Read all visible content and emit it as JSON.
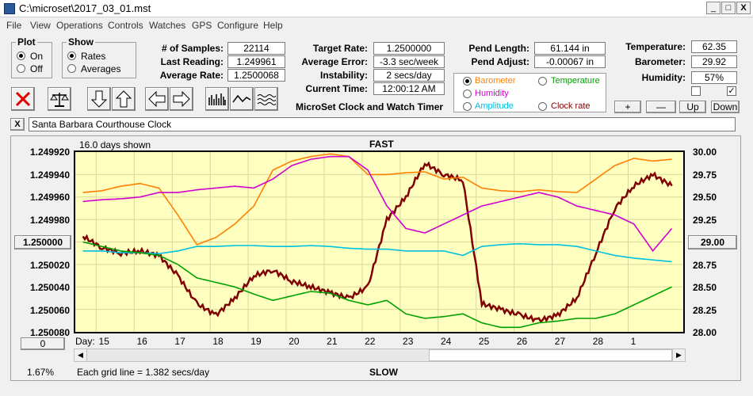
{
  "window": {
    "title": "C:\\microset\\2017_03_01.mst",
    "minimize": "_",
    "maximize": "□",
    "close": "X"
  },
  "menu": [
    "File",
    "View",
    "Operations",
    "Controls",
    "Watches",
    "GPS",
    "Configure",
    "Help"
  ],
  "plot_group": {
    "label": "Plot",
    "options": [
      "On",
      "Off"
    ],
    "selected": "On"
  },
  "show_group": {
    "label": "Show",
    "options": [
      "Rates",
      "Averages"
    ],
    "selected": "Rates"
  },
  "stats": {
    "samples_label": "# of Samples:",
    "samples": "22114",
    "last_reading_label": "Last Reading:",
    "last_reading": "1.249961",
    "avg_rate_label": "Average Rate:",
    "avg_rate": "1.2500068"
  },
  "targets": {
    "target_rate_label": "Target Rate:",
    "target_rate": "1.2500000",
    "avg_error_label": "Average Error:",
    "avg_error": "-3.3 sec/week",
    "instability_label": "Instability:",
    "instability": "2 secs/day",
    "current_time_label": "Current Time:",
    "current_time": "12:00:12 AM"
  },
  "pend": {
    "length_label": "Pend Length:",
    "length": "61.144 in",
    "adjust_label": "Pend Adjust:",
    "adjust": "-0.00067 in"
  },
  "app_label": "MicroSet Clock and Watch Timer",
  "series_select": {
    "options": [
      {
        "label": "Barometer",
        "color": "#ff8000",
        "selected": true
      },
      {
        "label": "Temperature",
        "color": "#00a000",
        "selected": false
      },
      {
        "label": "Humidity",
        "color": "#d000d0",
        "selected": false
      },
      {
        "label": "Clock rate",
        "color": "#800000",
        "selected": false
      },
      {
        "label": "Amplitude",
        "color": "#00c0e0",
        "selected": false
      }
    ]
  },
  "env": {
    "temperature_label": "Temperature:",
    "temperature": "62.35",
    "barometer_label": "Barometer:",
    "barometer": "29.92",
    "humidity_label": "Humidity:",
    "humidity": "57%"
  },
  "adjust_buttons": [
    "+",
    "—",
    "Up",
    "Down"
  ],
  "clock_name": "Santa Barbara Courthouse Clock",
  "close_x": "X",
  "chart": {
    "days_shown": "16.0 days shown",
    "fast": "FAST",
    "slow": "SLOW",
    "grid_note": "Each grid line = 1.382 secs/day",
    "percent": "1.67%",
    "left_offset_button": "0",
    "right_offset_button": "29.00",
    "center_left_button": "1.250000",
    "day_label": "Day:",
    "left_axis": [
      "1.249920",
      "1.249940",
      "1.249960",
      "1.249980",
      "1.250000",
      "1.250020",
      "1.250040",
      "1.250060",
      "1.250080"
    ],
    "right_axis": [
      "30.00",
      "29.75",
      "29.50",
      "29.25",
      "29.00",
      "28.75",
      "28.50",
      "28.25",
      "28.00"
    ],
    "days": [
      "15",
      "16",
      "17",
      "18",
      "19",
      "20",
      "21",
      "22",
      "23",
      "24",
      "25",
      "26",
      "27",
      "28",
      "1"
    ]
  },
  "chart_data": {
    "type": "line",
    "x_unit": "days",
    "x": [
      14.5,
      15,
      15.5,
      16,
      16.5,
      17,
      17.5,
      18,
      18.5,
      19,
      19.5,
      20,
      20.5,
      21,
      21.5,
      22,
      22.5,
      23,
      23.5,
      24,
      24.5,
      25,
      25.5,
      26,
      26.5,
      27,
      27.5,
      28,
      28.5,
      29,
      29.5,
      30
    ],
    "x_tick_labels": [
      "15",
      "16",
      "17",
      "18",
      "19",
      "20",
      "21",
      "22",
      "23",
      "24",
      "25",
      "26",
      "27",
      "28",
      "1"
    ],
    "left_axis_range": [
      1.24992,
      1.25008
    ],
    "right_axis_range": [
      28.0,
      30.0
    ],
    "series": [
      {
        "name": "Clock rate",
        "color": "#800000",
        "axis": "left",
        "values": [
          1.249995,
          1.250005,
          1.25001,
          1.250008,
          1.250012,
          1.25003,
          1.250055,
          1.250065,
          1.25005,
          1.25003,
          1.250025,
          1.250035,
          1.25004,
          1.250045,
          1.25005,
          1.25004,
          1.24998,
          1.24996,
          1.24993,
          1.24994,
          1.249945,
          1.250055,
          1.25006,
          1.250065,
          1.25007,
          1.250065,
          1.25005,
          1.25001,
          1.24997,
          1.24995,
          1.24994,
          1.24995
        ]
      },
      {
        "name": "Barometer",
        "color": "#ff8000",
        "axis": "right",
        "values": [
          29.55,
          29.57,
          29.62,
          29.65,
          29.6,
          29.3,
          28.97,
          29.05,
          29.2,
          29.4,
          29.8,
          29.9,
          29.95,
          29.98,
          29.95,
          29.75,
          29.75,
          29.77,
          29.78,
          29.7,
          29.72,
          29.6,
          29.57,
          29.56,
          29.58,
          29.56,
          29.55,
          29.7,
          29.85,
          29.93,
          29.9,
          29.92
        ]
      },
      {
        "name": "Humidity",
        "color": "#d000d0",
        "axis": "right",
        "values": [
          29.45,
          29.47,
          29.48,
          29.5,
          29.55,
          29.55,
          29.58,
          29.6,
          29.62,
          29.6,
          29.7,
          29.85,
          29.92,
          29.95,
          29.95,
          29.8,
          29.4,
          29.15,
          29.1,
          29.2,
          29.3,
          29.4,
          29.45,
          29.5,
          29.55,
          29.5,
          29.4,
          29.35,
          29.3,
          29.2,
          28.9,
          29.15
        ]
      },
      {
        "name": "Amplitude",
        "color": "#00c0e0",
        "axis": "right",
        "values": [
          28.9,
          28.9,
          28.88,
          28.88,
          28.87,
          28.9,
          28.95,
          28.95,
          28.96,
          28.96,
          28.95,
          28.95,
          28.96,
          28.95,
          28.93,
          28.92,
          28.92,
          28.9,
          28.9,
          28.9,
          28.85,
          28.95,
          28.97,
          28.98,
          28.97,
          28.97,
          28.95,
          28.9,
          28.85,
          28.82,
          28.8,
          28.78
        ]
      },
      {
        "name": "Temperature",
        "color": "#00a000",
        "axis": "right",
        "values": [
          29.0,
          28.95,
          28.9,
          28.88,
          28.85,
          28.75,
          28.6,
          28.55,
          28.5,
          28.42,
          28.35,
          28.4,
          28.45,
          28.43,
          28.35,
          28.3,
          28.35,
          28.2,
          28.15,
          28.17,
          28.2,
          28.1,
          28.05,
          28.05,
          28.1,
          28.12,
          28.15,
          28.15,
          28.2,
          28.3,
          28.4,
          28.5
        ]
      }
    ]
  }
}
